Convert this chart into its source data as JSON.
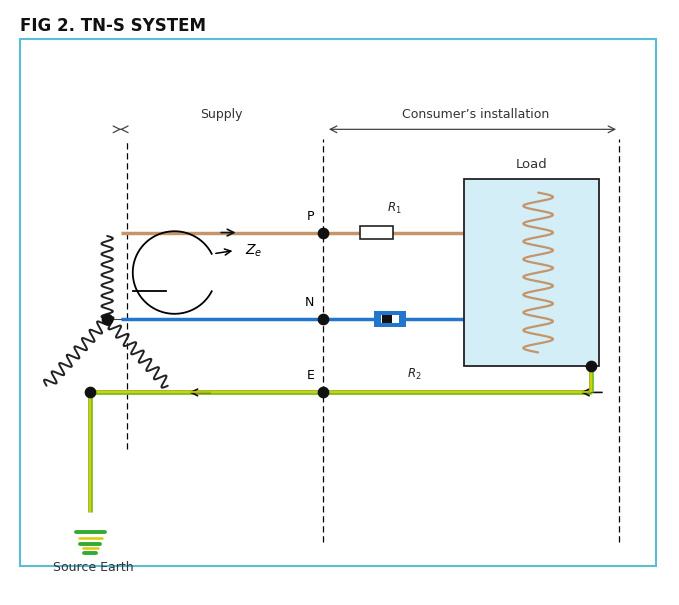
{
  "title": "FIG 2. TN-S SYSTEM",
  "title_fontsize": 12,
  "bg_color": "#ffffff",
  "border_color": "#5bbcd4",
  "fig_width": 6.79,
  "fig_height": 6.05,
  "supply_label": "Supply",
  "consumer_label": "Consumer’s installation",
  "load_label": "Load",
  "ze_label": "$Z_e$",
  "P_label": "P",
  "N_label": "N",
  "E_label": "E",
  "R1_label": "$R_1$",
  "R2_label": "$R_2$",
  "source_earth_label": "Source Earth",
  "line_color_phase": "#c4956a",
  "line_color_neutral": "#2277cc",
  "line_color_earth_green": "#7dc02a",
  "line_color_earth_yellow": "#e8d000",
  "coil_color": "#222222",
  "load_box_color": "#d4eef8",
  "load_box_border": "#222222",
  "dot_color": "#111111",
  "neutral_switch_color": "#111111"
}
